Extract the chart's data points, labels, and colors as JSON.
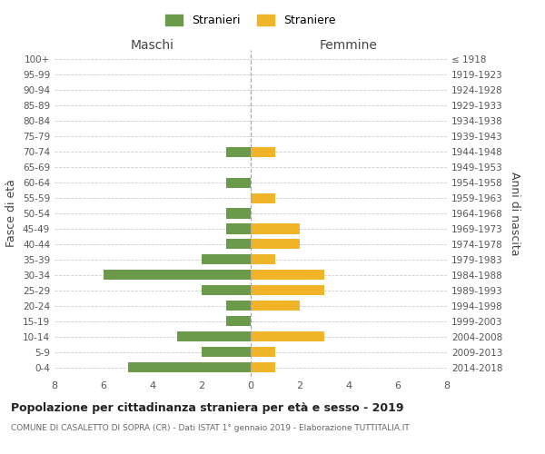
{
  "age_groups": [
    "0-4",
    "5-9",
    "10-14",
    "15-19",
    "20-24",
    "25-29",
    "30-34",
    "35-39",
    "40-44",
    "45-49",
    "50-54",
    "55-59",
    "60-64",
    "65-69",
    "70-74",
    "75-79",
    "80-84",
    "85-89",
    "90-94",
    "95-99",
    "100+"
  ],
  "birth_years": [
    "2014-2018",
    "2009-2013",
    "2004-2008",
    "1999-2003",
    "1994-1998",
    "1989-1993",
    "1984-1988",
    "1979-1983",
    "1974-1978",
    "1969-1973",
    "1964-1968",
    "1959-1963",
    "1954-1958",
    "1949-1953",
    "1944-1948",
    "1939-1943",
    "1934-1938",
    "1929-1933",
    "1924-1928",
    "1919-1923",
    "≤ 1918"
  ],
  "males": [
    5,
    2,
    3,
    1,
    1,
    2,
    6,
    2,
    1,
    1,
    1,
    0,
    1,
    0,
    1,
    0,
    0,
    0,
    0,
    0,
    0
  ],
  "females": [
    1,
    1,
    3,
    0,
    2,
    3,
    3,
    1,
    2,
    2,
    0,
    1,
    0,
    0,
    1,
    0,
    0,
    0,
    0,
    0,
    0
  ],
  "male_color": "#6a9a4a",
  "female_color": "#f0b429",
  "title": "Popolazione per cittadinanza straniera per età e sesso - 2019",
  "subtitle": "COMUNE DI CASALETTO DI SOPRA (CR) - Dati ISTAT 1° gennaio 2019 - Elaborazione TUTTITALIA.IT",
  "xlabel_left": "Maschi",
  "xlabel_right": "Femmine",
  "ylabel_left": "Fasce di età",
  "ylabel_right": "Anni di nascita",
  "legend_male": "Stranieri",
  "legend_female": "Straniere",
  "xlim": 8,
  "background_color": "#ffffff",
  "grid_color": "#cccccc"
}
